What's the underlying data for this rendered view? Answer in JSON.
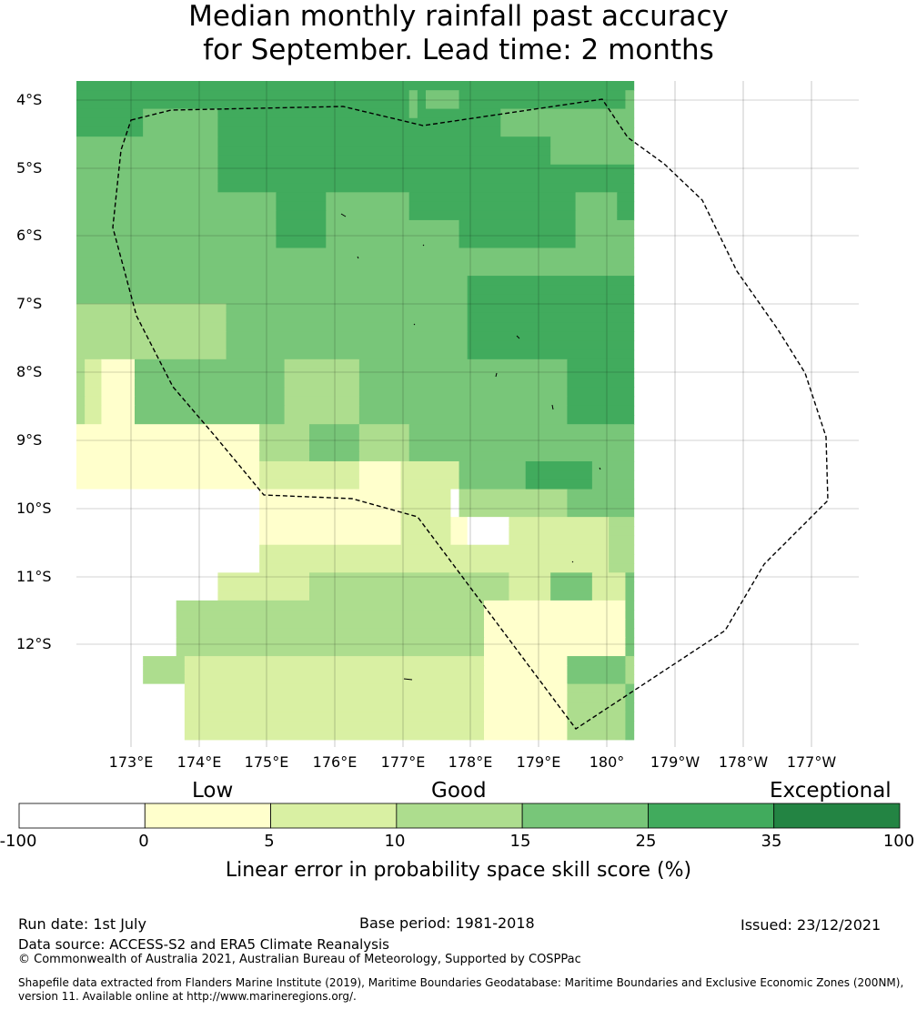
{
  "title": {
    "line1": "Median monthly rainfall past accuracy",
    "line2": "for September. Lead time: 2 months"
  },
  "map": {
    "lat_labels": [
      "4°S",
      "5°S",
      "6°S",
      "7°S",
      "8°S",
      "9°S",
      "10°S",
      "11°S",
      "12°S"
    ],
    "lon_labels": [
      "173°E",
      "174°E",
      "175°E",
      "176°E",
      "177°E",
      "178°E",
      "179°E",
      "180°",
      "179°W",
      "178°W",
      "177°W"
    ],
    "grid_category_legend": "cells coded by colour-bar bin: 0=-100..0, 1=0..5, 2=5..10, 3=10..15, 4=15..25, 5=25..35",
    "grid": [
      "5555555555555555555555555555555555555555555555555555555555555555555",
      "5555555555555555555555555555555555555555454444555555555555555555554",
      "5555555555555555555555555555555555555555454444555555555555555555554",
      "5555555544444444455555555555555555555555455555555554444444444444444",
      "5555555544444444455555555555555555555555555555555554444444444444444",
      "5555555544444444455555555555555555555555555555555554444444444444444",
      "4444444444444444455555555555555555555555555555555555555554444444444",
      "4444444444444444455555555555555555555555555555555555555554444444444",
      "4444444444444444455555555555555555555555555555555555555554444444444",
      "4444444444444444455555555555555555555555555555555555555555555555555",
      "4444444444444444455555555555555555555555555555555555555555555555555",
      "4444444444444444455555555555555555555555555555555555555555555555555",
      "4444444444444444444444445555554444444444555555555555555555554444455",
      "4444444444444444444444445555554444444444555555555555555555554444455",
      "4444444444444444444444445555554444444444555555555555555555554444455",
      "4444444444444444444444445555554444444444444444555555555555554444444",
      "4444444444444444444444445555554444444444444444555555555555554444444",
      "4444444444444444444444445555554444444444444444555555555555554444444",
      "4444444444444444444444444444444444444444444444444444444444444444444",
      "4444444444444444444444444444444444444444444444444444444444444444444",
      "4444444444444444444444444444444444444444444444444444444444444444444",
      "4444444444444444444444444444444444444444444444455555555555555555555",
      "4444444444444444444444444444444444444444444444455555555555555555555",
      "4444444444444444444444444444444444444444444444455555555555555555555",
      "3333333333333333334444444444444444444444444444455555555555555555555",
      "3333333333333333334444444444444444444444444444455555555555555555555",
      "3333333333333333334444444444444444444444444444455555555555555555555",
      "3333333333333333334444444444444444444444444444455555555555555555555",
      "3333333333333333334444444444444444444444444444455555555555555555555",
      "3333333333333333334444444444444444444444444444455555555555555555555",
      "3221111444444444444444444333333333444444444444444444444444455555555",
      "3221111444444444444444444333333333444444444444444444444444455555555",
      "3221111444444444444444444333333333444444444444444444444444455555555",
      "3221111444444444444444444333333333444444444444444444444444455555555",
      "3221111444444444444444444333333333444444444444444444444444455555555",
      "3221111444444444444444444333333333444444444444444444444444455555555",
      "3221111444444444444444444333333333444444444444444444444444455555555",
      "1111111111111111111111333333444444333333444444444444444444444444444",
      "1111111111111111111111333333444444333333444444444444444444444444444",
      "1111111111111111111111333333444444333333444444444444444444444444444",
      "1111111111111111111111333333444444333333444444444444444444444444444",
      "1111111111111111111111222222222222111112222222444444445555555544444",
      "1111111111111111111111222222222222111112222222444444445555555544444",
      "1111111111111111111111222222222222111112222222444444445555555544444",
      "0000000000000000000000111111111111111112222220333333333333344444444",
      "0000000000000000000000111111111111111112222220333333333333344444444",
      "0000000000000000000000111111111111111112222220333333333333344444444",
      "0000000000000000000000111111111111111112222221100000222222222222333",
      "0000000000000000000000111111111111111112222221100000222222222222333",
      "0000000000000000000000111111111111111112222221100000222222222222333",
      "0000000000000000000000222222222222222222222222222222222222222222333",
      "0000000000000000000000222222222222222222222222222222222222222222333",
      "0000000000000000000000222222222222222222222222222222222222222222333",
      "0000000000000000022222222222333333333333333333333333222224444422224",
      "0000000000000000022222222222333333333333333333333333222224444422224",
      "0000000000000000022222222222333333333333333333333333222224444422224",
      "0000000000003333333333333333333333333333333333333111111111111111114",
      "0000000000003333333333333333333333333333333333333111111111111111114",
      "0000000000003333333333333333333333333333333333333111111111111111114",
      "0000000000003333333333333333333333333333333333333111111111111111114",
      "0000000000003333333333333333333333333333333333333111111111111111114",
      "0000000000003333333333333333333333333333333333333111111111111111114",
      "0000000033333222222222222222222222222222222222222111111111144444443",
      "0000000033333222222222222222222222222222222222222111111111144444443",
      "0000000033333222222222222222222222222222222222222111111111144444443",
      "0000000000000222222222222222222222222222222222222111111111133333334",
      "0000000000000222222222222222222222222222222222222111111111133333334",
      "0000000000000222222222222222222222222222222222222111111111133333334",
      "0000000000000222222222222222222222222222222222222111111111133333334",
      "0000000000000222222222222222222222222222222222222111111111133333334",
      "0000000000000222222222222222222222222222222222222111111111133333334"
    ],
    "eez_boundary": "dashed black line"
  },
  "colorbar": {
    "tier_labels": [
      "Low",
      "Good",
      "Exceptional"
    ],
    "ticks": [
      "-100",
      "0",
      "5",
      "10",
      "15",
      "25",
      "35",
      "100"
    ],
    "colors": [
      "#ffffff",
      "#ffffcc",
      "#d9f0a3",
      "#addd8e",
      "#78c679",
      "#41ab5d",
      "#238443"
    ],
    "label": "Linear error in probability space skill score (%)"
  },
  "footer": {
    "run_date": "Run date: 1st July",
    "base_period": "Base period: 1981-2018",
    "issued": "Issued: 23/12/2021",
    "data_source": "Data source: ACCESS-S2 and ERA5 Climate Reanalysis",
    "copyright": "© Commonwealth of Australia 2021, Australian Bureau of Meteorology, Supported by COSPPac",
    "shapefile_line1": "Shapefile data extracted from Flanders Marine Institute (2019), Maritime Boundaries Geodatabase: Maritime Boundaries and Exclusive Economic Zones (200NM),",
    "shapefile_line2": "version 11. Available online at http://www.marineregions.org/."
  }
}
